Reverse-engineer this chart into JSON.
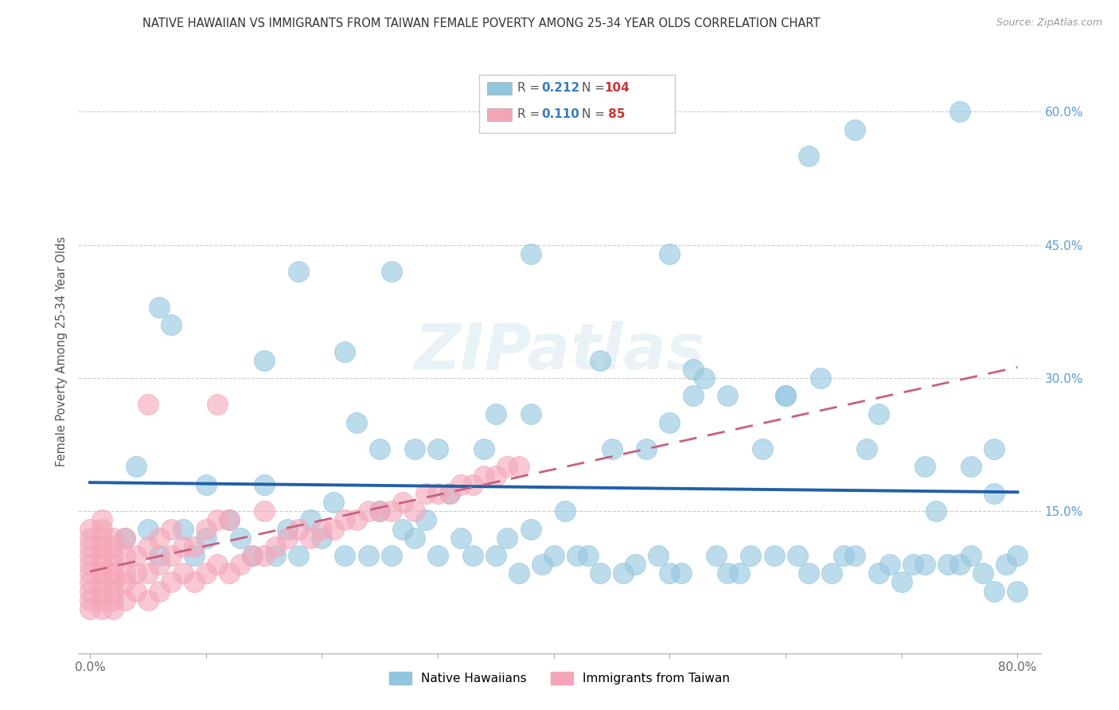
{
  "title": "NATIVE HAWAIIAN VS IMMIGRANTS FROM TAIWAN FEMALE POVERTY AMONG 25-34 YEAR OLDS CORRELATION CHART",
  "source": "Source: ZipAtlas.com",
  "ylabel": "Female Poverty Among 25-34 Year Olds",
  "xlim": [
    -0.01,
    0.82
  ],
  "ylim": [
    -0.01,
    0.67
  ],
  "label1": "Native Hawaiians",
  "label2": "Immigrants from Taiwan",
  "color1": "#92c5de",
  "color2": "#f4a6b8",
  "trendline_color1": "#2060a8",
  "trendline_color2": "#c86080",
  "background_color": "#ffffff",
  "watermark": "ZIPatlas",
  "native_hawaiian_x": [
    0.03,
    0.05,
    0.06,
    0.07,
    0.08,
    0.09,
    0.1,
    0.1,
    0.12,
    0.13,
    0.14,
    0.15,
    0.16,
    0.17,
    0.18,
    0.19,
    0.2,
    0.21,
    0.22,
    0.23,
    0.24,
    0.25,
    0.25,
    0.26,
    0.27,
    0.28,
    0.28,
    0.29,
    0.3,
    0.3,
    0.31,
    0.32,
    0.33,
    0.34,
    0.35,
    0.36,
    0.37,
    0.38,
    0.38,
    0.39,
    0.4,
    0.41,
    0.42,
    0.43,
    0.44,
    0.45,
    0.46,
    0.47,
    0.48,
    0.49,
    0.5,
    0.5,
    0.51,
    0.52,
    0.53,
    0.54,
    0.55,
    0.56,
    0.57,
    0.58,
    0.59,
    0.6,
    0.61,
    0.62,
    0.63,
    0.64,
    0.65,
    0.66,
    0.67,
    0.68,
    0.69,
    0.7,
    0.71,
    0.72,
    0.73,
    0.74,
    0.75,
    0.76,
    0.77,
    0.78,
    0.78,
    0.79,
    0.8,
    0.8,
    0.06,
    0.26,
    0.38,
    0.5,
    0.62,
    0.78,
    0.04,
    0.15,
    0.22,
    0.35,
    0.44,
    0.52,
    0.6,
    0.68,
    0.72,
    0.76,
    0.18,
    0.55,
    0.66,
    0.75
  ],
  "native_hawaiian_y": [
    0.12,
    0.13,
    0.1,
    0.36,
    0.13,
    0.1,
    0.18,
    0.12,
    0.14,
    0.12,
    0.1,
    0.18,
    0.1,
    0.13,
    0.1,
    0.14,
    0.12,
    0.16,
    0.1,
    0.25,
    0.1,
    0.15,
    0.22,
    0.1,
    0.13,
    0.12,
    0.22,
    0.14,
    0.1,
    0.22,
    0.17,
    0.12,
    0.1,
    0.22,
    0.1,
    0.12,
    0.08,
    0.13,
    0.26,
    0.09,
    0.1,
    0.15,
    0.1,
    0.1,
    0.08,
    0.22,
    0.08,
    0.09,
    0.22,
    0.1,
    0.08,
    0.25,
    0.08,
    0.28,
    0.3,
    0.1,
    0.08,
    0.08,
    0.1,
    0.22,
    0.1,
    0.28,
    0.1,
    0.08,
    0.3,
    0.08,
    0.1,
    0.1,
    0.22,
    0.08,
    0.09,
    0.07,
    0.09,
    0.09,
    0.15,
    0.09,
    0.09,
    0.1,
    0.08,
    0.06,
    0.17,
    0.09,
    0.1,
    0.06,
    0.38,
    0.42,
    0.44,
    0.44,
    0.55,
    0.22,
    0.2,
    0.32,
    0.33,
    0.26,
    0.32,
    0.31,
    0.28,
    0.26,
    0.2,
    0.2,
    0.42,
    0.28,
    0.58,
    0.6
  ],
  "taiwan_x": [
    0.0,
    0.0,
    0.0,
    0.0,
    0.0,
    0.0,
    0.0,
    0.0,
    0.0,
    0.0,
    0.01,
    0.01,
    0.01,
    0.01,
    0.01,
    0.01,
    0.01,
    0.01,
    0.01,
    0.01,
    0.01,
    0.02,
    0.02,
    0.02,
    0.02,
    0.02,
    0.02,
    0.02,
    0.02,
    0.02,
    0.03,
    0.03,
    0.03,
    0.03,
    0.03,
    0.04,
    0.04,
    0.04,
    0.05,
    0.05,
    0.05,
    0.06,
    0.06,
    0.06,
    0.07,
    0.07,
    0.07,
    0.08,
    0.08,
    0.09,
    0.09,
    0.1,
    0.1,
    0.11,
    0.11,
    0.12,
    0.12,
    0.13,
    0.14,
    0.15,
    0.15,
    0.16,
    0.17,
    0.18,
    0.19,
    0.2,
    0.21,
    0.22,
    0.23,
    0.24,
    0.25,
    0.26,
    0.27,
    0.28,
    0.29,
    0.3,
    0.31,
    0.32,
    0.33,
    0.34,
    0.35,
    0.36,
    0.37,
    0.11,
    0.05
  ],
  "taiwan_y": [
    0.04,
    0.05,
    0.06,
    0.07,
    0.08,
    0.09,
    0.1,
    0.11,
    0.12,
    0.13,
    0.04,
    0.05,
    0.06,
    0.07,
    0.08,
    0.09,
    0.1,
    0.11,
    0.12,
    0.13,
    0.14,
    0.04,
    0.05,
    0.06,
    0.07,
    0.08,
    0.09,
    0.1,
    0.11,
    0.12,
    0.05,
    0.07,
    0.08,
    0.1,
    0.12,
    0.06,
    0.08,
    0.1,
    0.05,
    0.08,
    0.11,
    0.06,
    0.09,
    0.12,
    0.07,
    0.1,
    0.13,
    0.08,
    0.11,
    0.07,
    0.11,
    0.08,
    0.13,
    0.09,
    0.14,
    0.08,
    0.14,
    0.09,
    0.1,
    0.1,
    0.15,
    0.11,
    0.12,
    0.13,
    0.12,
    0.13,
    0.13,
    0.14,
    0.14,
    0.15,
    0.15,
    0.15,
    0.16,
    0.15,
    0.17,
    0.17,
    0.17,
    0.18,
    0.18,
    0.19,
    0.19,
    0.2,
    0.2,
    0.27,
    0.27
  ]
}
